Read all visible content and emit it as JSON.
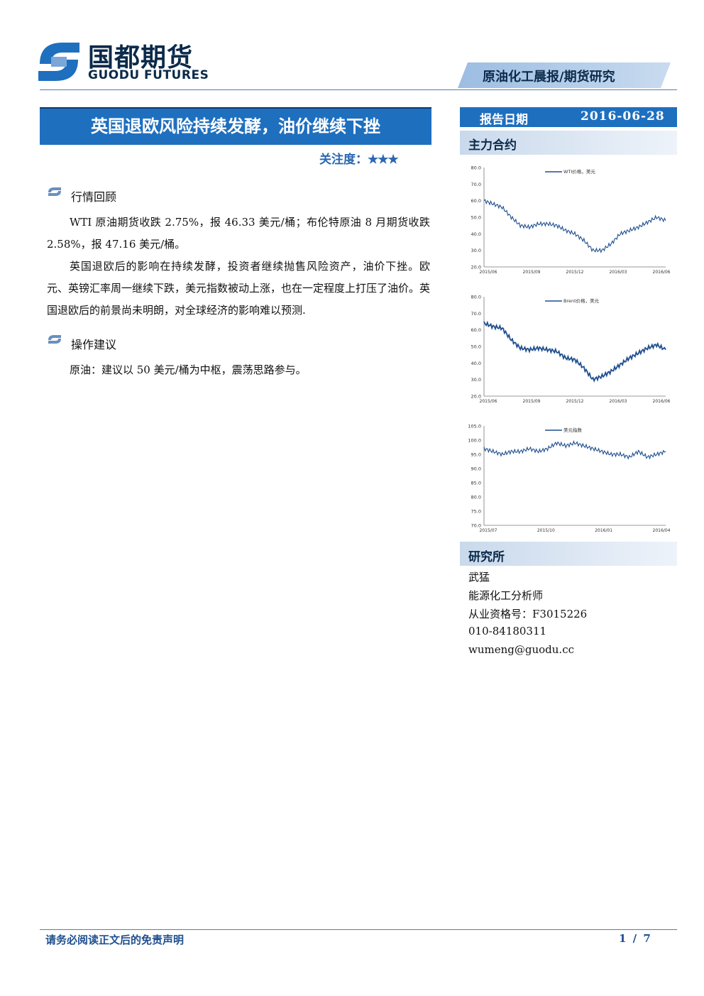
{
  "brand": {
    "name_cn": "国都期货",
    "name_en": "GUODU FUTURES"
  },
  "header": {
    "report_type": "原油化工晨报/期货研究"
  },
  "title": "英国退欧风险持续发酵，油价继续下挫",
  "attention": {
    "label": "关注度：",
    "stars": "★★★",
    "rating": 3
  },
  "sections": [
    {
      "title": "行情回顾",
      "paragraphs": [
        "WTI 原油期货收跌 2.75%，报 46.33 美元/桶；布伦特原油 8 月期货收跌 2.58%，报 47.16 美元/桶。",
        "英国退欧后的影响在持续发酵，投资者继续抛售风险资产，油价下挫。欧元、英镑汇率周一继续下跌，美元指数被动上涨，也在一定程度上打压了油价。英国退欧后的前景尚未明朗，对全球经济的影响难以预测."
      ]
    },
    {
      "title": "操作建议",
      "paragraphs": [
        "原油：建议以 50 美元/桶为中枢，震荡思路参与。"
      ]
    }
  ],
  "sidebar": {
    "date_label": "报告日期",
    "date_value": "2016-06-28",
    "contracts_title": "主力合约",
    "research_title": "研究所",
    "analyst": {
      "name": "武猛",
      "role": "能源化工分析师",
      "license": "从业资格号：F3015226",
      "phone": "010-84180311",
      "email": "wumeng@guodu.cc"
    }
  },
  "footer": {
    "disclaimer": "请务必阅读正文后的免责声明",
    "page": "1 / 7"
  },
  "colors": {
    "primary": "#1f6fbf",
    "dark": "#0b2a4a",
    "line": "#1f4f8f"
  },
  "chart_data": [
    {
      "type": "line",
      "legend": "WTI价格，美元",
      "ylim": [
        20,
        80
      ],
      "yticks": [
        "80.0",
        "70.0",
        "60.0",
        "50.0",
        "40.0",
        "30.0",
        "20.0"
      ],
      "xticks": [
        "2015/06",
        "2015/09",
        "2015/12",
        "2016/03",
        "2016/06"
      ],
      "x": [
        0,
        5,
        10,
        15,
        20,
        25,
        30,
        35,
        40,
        45,
        50,
        55,
        60,
        65,
        70,
        75,
        80,
        85,
        90,
        95,
        100
      ],
      "values": [
        60,
        58,
        56,
        50,
        45,
        44,
        46,
        46,
        45,
        42,
        40,
        36,
        30,
        30,
        34,
        40,
        42,
        44,
        47,
        50,
        48
      ]
    },
    {
      "type": "line",
      "legend": "Brent价格，美元",
      "ylim": [
        20,
        80
      ],
      "yticks": [
        "80.0",
        "70.0",
        "60.0",
        "50.0",
        "40.0",
        "30.0",
        "20.0"
      ],
      "xticks": [
        "2015/06",
        "2015/09",
        "2015/12",
        "2016/03",
        "2016/06"
      ],
      "x": [
        0,
        5,
        10,
        15,
        20,
        25,
        30,
        35,
        40,
        45,
        50,
        55,
        60,
        65,
        70,
        75,
        80,
        85,
        90,
        95,
        100
      ],
      "values": [
        64,
        62,
        61,
        54,
        49,
        48,
        49,
        48,
        47,
        43,
        42,
        37,
        30,
        32,
        35,
        39,
        43,
        46,
        49,
        51,
        48
      ]
    },
    {
      "type": "line",
      "legend": "美元指数",
      "ylim": [
        70,
        105
      ],
      "yticks": [
        "105.0",
        "100.0",
        "95.0",
        "90.0",
        "85.0",
        "80.0",
        "75.0",
        "70.0"
      ],
      "xticks": [
        "2015/07",
        "2015/10",
        "2016/01",
        "2016/04"
      ],
      "x": [
        0,
        5,
        10,
        15,
        20,
        25,
        30,
        35,
        40,
        45,
        50,
        55,
        60,
        65,
        70,
        75,
        80,
        85,
        90,
        95,
        100
      ],
      "values": [
        97,
        96,
        95,
        96,
        96,
        97,
        96,
        97,
        99,
        98,
        99,
        98,
        97,
        96,
        95,
        95,
        94,
        96,
        94,
        95,
        96
      ]
    }
  ]
}
